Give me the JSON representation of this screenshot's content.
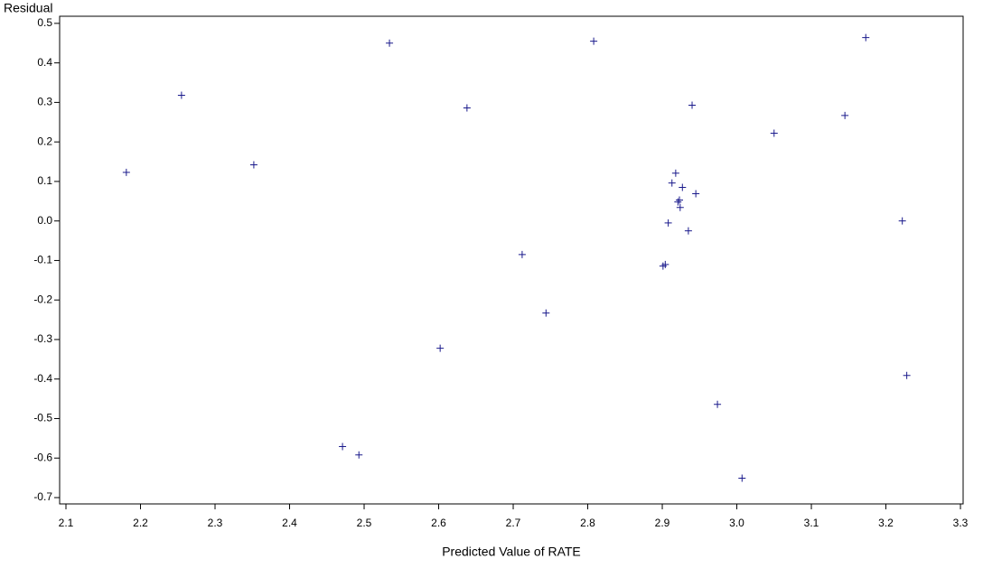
{
  "chart_data": {
    "type": "scatter",
    "xlabel": "Predicted Value of RATE",
    "ylabel": "Residual",
    "marker": "+",
    "color": "#1a1a8c",
    "xlim": [
      2.0915,
      3.3036
    ],
    "ylim": [
      -0.716,
      0.518
    ],
    "xticks": [
      2.1,
      2.2,
      2.3,
      2.4,
      2.5,
      2.6,
      2.7,
      2.8,
      2.9,
      {
        "value": 3,
        "label": "3.0"
      },
      3.1,
      3.2,
      3.3
    ],
    "yticks": [
      -0.7,
      -0.6,
      -0.5,
      -0.4,
      -0.3,
      -0.2,
      -0.1,
      {
        "value": 0,
        "label": "0.0"
      },
      0.1,
      0.2,
      0.3,
      0.4,
      0.5
    ],
    "grid": false,
    "x": [
      2.181,
      2.255,
      2.352,
      2.534,
      2.471,
      2.493,
      2.602,
      2.638,
      2.712,
      2.744,
      2.808,
      2.901,
      2.904,
      2.908,
      2.913,
      2.918,
      2.921,
      2.923,
      2.924,
      2.927,
      2.935,
      2.94,
      2.945,
      2.974,
      3.007,
      3.05,
      3.145,
      3.173,
      3.222,
      3.228
    ],
    "values": [
      0.123,
      0.318,
      0.142,
      0.45,
      -0.571,
      -0.592,
      -0.322,
      0.286,
      -0.085,
      -0.233,
      0.455,
      -0.114,
      -0.11,
      -0.005,
      0.096,
      0.121,
      0.048,
      0.053,
      0.034,
      0.085,
      -0.025,
      0.293,
      0.069,
      -0.464,
      -0.651,
      0.222,
      0.267,
      0.464,
      0.0,
      -0.391
    ]
  }
}
